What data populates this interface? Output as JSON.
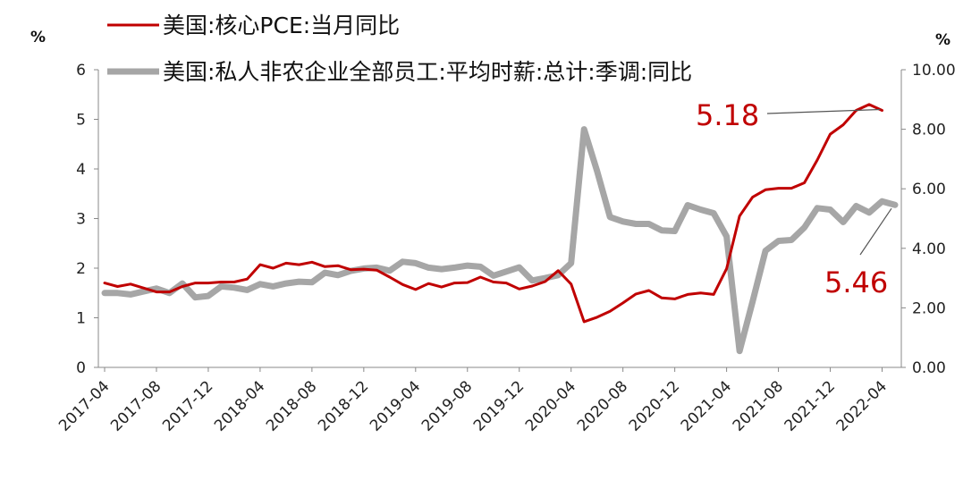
{
  "chart_data": {
    "type": "line",
    "left_axis_unit": "%",
    "right_axis_unit": "%",
    "left_ylim": [
      0,
      6
    ],
    "left_ticks": [
      "0",
      "1",
      "2",
      "3",
      "4",
      "5",
      "6"
    ],
    "right_ylim": [
      0,
      10
    ],
    "right_ticks": [
      "0.00",
      "2.00",
      "4.00",
      "6.00",
      "8.00",
      "10.00"
    ],
    "x_tick_labels": [
      "2017-04",
      "2017-08",
      "2017-12",
      "2018-04",
      "2018-08",
      "2018-12",
      "2019-04",
      "2019-08",
      "2019-12",
      "2020-04",
      "2020-08",
      "2020-12",
      "2021-04",
      "2021-08",
      "2021-12",
      "2022-04"
    ],
    "grid": false,
    "legend_position": "top",
    "series": [
      {
        "name": "美国:核心PCE:当月同比",
        "axis": "left",
        "color": "#c00000",
        "values": [
          1.7,
          1.63,
          1.68,
          1.6,
          1.52,
          1.52,
          1.63,
          1.7,
          1.7,
          1.72,
          1.72,
          1.78,
          2.07,
          2.0,
          2.1,
          2.07,
          2.12,
          2.03,
          2.05,
          1.97,
          1.98,
          1.96,
          1.82,
          1.67,
          1.57,
          1.69,
          1.62,
          1.7,
          1.71,
          1.82,
          1.72,
          1.7,
          1.58,
          1.64,
          1.73,
          1.95,
          1.68,
          0.92,
          1.01,
          1.13,
          1.3,
          1.48,
          1.55,
          1.4,
          1.38,
          1.47,
          1.5,
          1.47,
          1.99,
          3.05,
          3.43,
          3.58,
          3.61,
          3.61,
          3.72,
          4.18,
          4.7,
          4.89,
          5.18,
          5.3,
          5.18
        ]
      },
      {
        "name": "美国:私人非农企业全部员工:平均时薪:总计:季调:同比",
        "axis": "right",
        "color": "#a6a6a6",
        "values": [
          2.5,
          2.5,
          2.45,
          2.55,
          2.65,
          2.5,
          2.82,
          2.35,
          2.4,
          2.72,
          2.68,
          2.6,
          2.8,
          2.72,
          2.82,
          2.88,
          2.86,
          3.18,
          3.1,
          3.24,
          3.32,
          3.35,
          3.25,
          3.55,
          3.5,
          3.35,
          3.3,
          3.35,
          3.42,
          3.38,
          3.08,
          3.22,
          3.36,
          2.92,
          3.0,
          3.1,
          3.5,
          8.0,
          6.6,
          5.05,
          4.9,
          4.82,
          4.82,
          4.6,
          4.58,
          5.45,
          5.3,
          5.18,
          4.4,
          0.55,
          2.2,
          3.92,
          4.25,
          4.28,
          4.7,
          5.35,
          5.3,
          4.88,
          5.42,
          5.2,
          5.58,
          5.46
        ]
      }
    ],
    "annotations": [
      {
        "text": "5.18",
        "series": 0,
        "color": "#c00000"
      },
      {
        "text": "5.46",
        "series": 1,
        "color": "#c00000"
      }
    ]
  }
}
